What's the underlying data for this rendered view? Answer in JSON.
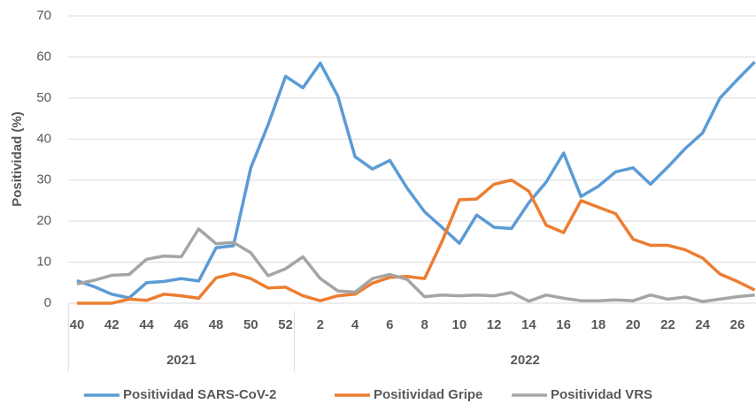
{
  "chart_data": {
    "type": "line",
    "y_label": "Positividad (%)",
    "categories": [
      "40",
      null,
      "42",
      null,
      "44",
      null,
      "46",
      null,
      "48",
      null,
      "50",
      null,
      "52",
      null,
      "2",
      null,
      "4",
      null,
      "6",
      null,
      "8",
      null,
      "10",
      null,
      "12",
      null,
      "14",
      null,
      "16",
      null,
      "18",
      null,
      "20",
      null,
      "22",
      null,
      "24",
      null,
      "26",
      null
    ],
    "x_groups": [
      {
        "label": "2021",
        "size": 13
      },
      {
        "label": "2022",
        "size": 27
      }
    ],
    "series": [
      {
        "name": "Positividad SARS-CoV-2",
        "color": "#5b9bd5",
        "values": [
          5.5,
          4,
          2.2,
          1.3,
          5,
          5.3,
          6,
          5.4,
          13.5,
          14,
          33,
          43.5,
          55.3,
          52.5,
          58.5,
          50.5,
          35.7,
          32.7,
          34.8,
          28,
          22.3,
          18.5,
          14.6,
          21.5,
          18.5,
          18.2,
          24.5,
          29.5,
          36.6,
          26,
          28.5,
          32,
          33,
          29,
          33.2,
          37.7,
          41.5,
          50,
          54.5,
          58.8
        ]
      },
      {
        "name": "Positividad Gripe",
        "color": "#ed7d31",
        "values": [
          0,
          0,
          0,
          1,
          0.7,
          2.2,
          1.8,
          1.2,
          6.2,
          7.2,
          6,
          3.7,
          3.9,
          1.8,
          0.6,
          1.8,
          2.2,
          4.9,
          6.3,
          6.5,
          6,
          15,
          25.2,
          25.4,
          29,
          30,
          27.3,
          19,
          17.2,
          25,
          23.4,
          21.8,
          15.6,
          14.1,
          14.1,
          13,
          11,
          7.1,
          5.3,
          3.2
        ]
      },
      {
        "name": "Positividad VRS",
        "color": "#a5a5a5",
        "values": [
          4.7,
          5.6,
          6.8,
          7,
          10.7,
          11.5,
          11.3,
          18.1,
          14.5,
          14.8,
          12.3,
          6.7,
          8.4,
          11.3,
          6,
          3,
          2.7,
          6,
          7,
          5.8,
          1.6,
          2,
          1.8,
          2,
          1.8,
          2.6,
          0.5,
          2,
          1.2,
          0.6,
          0.6,
          0.8,
          0.6,
          2,
          1,
          1.5,
          0.4,
          1,
          1.6,
          2
        ]
      }
    ],
    "ylim": [
      0,
      70
    ],
    "yticks": [
      0,
      10,
      20,
      30,
      40,
      50,
      60,
      70
    ],
    "grid": true
  }
}
